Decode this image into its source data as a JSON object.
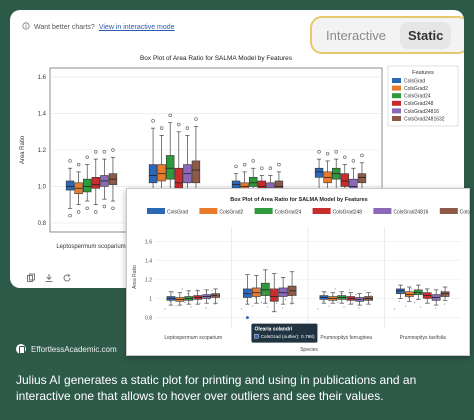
{
  "colors": {
    "ColsGrad": "#2d67b8",
    "ColsGrad2": "#ea7b2c",
    "ColsGrad24": "#2e9a3b",
    "ColsGrad248": "#c82c2d",
    "ColsGrad24816": "#8b68b8",
    "ColsGrad2481632": "#8d5a4a"
  },
  "hint": {
    "text": "Want better charts?",
    "link": "View in interactive mode"
  },
  "toggle": {
    "interactive": "Interactive",
    "static": "Static"
  },
  "static_plot": {
    "title": "Box Plot of Area Ratio for SALMA Model by Features",
    "ylabel": "Area Ratio",
    "visible_xlabel": "Leptospermum scoparium",
    "legend_title": "Features",
    "yticks": [
      "1.6",
      "1.4",
      "1.2",
      "1.0",
      "0.8"
    ]
  },
  "interactive_plot": {
    "title": "Box Plot of Area Ratio for SALMA Model by Features",
    "ylabel": "Area Ratio",
    "xlabel": "Species",
    "species": [
      "Leptospermum scoparium",
      "Olearia solandri",
      "Prumnopitys ferruginea",
      "Prumnopitys taxifolia"
    ],
    "yticks": [
      "1.6",
      "1.4",
      "1.2",
      "1",
      "0.8"
    ],
    "tooltip": {
      "title": "Olearia solandri",
      "text": "ColsGrad (outlier): 0.798)"
    }
  },
  "brand": "EffortlessAcademic.com",
  "caption": "Julius AI generates a static plot for printing and using in publications and an interactive one that allows to hover over outliers and see their values.",
  "chart_data": [
    {
      "type": "box",
      "title": "Box Plot of Area Ratio for SALMA Model by Features",
      "ylabel": "Area Ratio",
      "ylim": [
        0.75,
        1.65
      ],
      "legend_title": "Features",
      "legend_placement": "top-right",
      "series": [
        "ColsGrad",
        "ColsGrad2",
        "ColsGrad24",
        "ColsGrad248",
        "ColsGrad24816",
        "ColsGrad2481632"
      ],
      "groups": [
        {
          "median": [
            1.0,
            0.99,
            1.0,
            1.01,
            1.03,
            1.04
          ],
          "q1": [
            0.98,
            0.96,
            0.97,
            0.99,
            1.0,
            1.01
          ],
          "q3": [
            1.03,
            1.02,
            1.04,
            1.05,
            1.06,
            1.07
          ],
          "whisker_low": [
            0.88,
            0.9,
            0.92,
            0.9,
            0.93,
            0.92
          ],
          "whisker_high": [
            1.1,
            1.08,
            1.12,
            1.15,
            1.15,
            1.16
          ]
        },
        {
          "median": [
            1.06,
            1.07,
            1.1,
            1.02,
            1.07,
            1.09
          ],
          "q1": [
            1.02,
            1.03,
            1.04,
            0.97,
            1.02,
            1.02
          ],
          "q3": [
            1.12,
            1.12,
            1.17,
            1.1,
            1.12,
            1.14
          ],
          "whisker_low": [
            0.95,
            0.95,
            0.95,
            0.85,
            0.94,
            0.94
          ],
          "whisker_high": [
            1.32,
            1.28,
            1.35,
            1.3,
            1.28,
            1.33
          ]
        },
        {
          "median": [
            1.01,
            1.0,
            1.02,
            1.0,
            0.99,
            1.0
          ],
          "q1": [
            0.99,
            0.98,
            1.0,
            0.98,
            0.97,
            0.97
          ],
          "q3": [
            1.03,
            1.02,
            1.05,
            1.03,
            1.02,
            1.03
          ],
          "whisker_low": [
            0.95,
            0.95,
            0.96,
            0.94,
            0.93,
            0.93
          ],
          "whisker_high": [
            1.07,
            1.08,
            1.1,
            1.06,
            1.06,
            1.08
          ]
        },
        {
          "median": [
            1.08,
            1.05,
            1.07,
            1.03,
            1.0,
            1.05
          ],
          "q1": [
            1.05,
            1.02,
            1.04,
            1.0,
            0.97,
            1.02
          ],
          "q3": [
            1.1,
            1.08,
            1.1,
            1.07,
            1.04,
            1.07
          ],
          "whisker_low": [
            0.98,
            0.97,
            0.98,
            0.94,
            0.9,
            0.97
          ],
          "whisker_high": [
            1.15,
            1.14,
            1.15,
            1.12,
            1.1,
            1.13
          ]
        }
      ]
    },
    {
      "type": "box",
      "title": "Box Plot of Area Ratio for SALMA Model by Features",
      "xlabel": "Species",
      "ylabel": "Area Ratio",
      "ylim": [
        0.7,
        1.75
      ],
      "legend_placement": "top",
      "categories": [
        "Leptospermum scoparium",
        "Olearia solandri",
        "Prumnopitys ferruginea",
        "Prumnopitys taxifolia"
      ],
      "series": [
        "ColsGrad",
        "ColsGrad2",
        "ColsGrad24",
        "ColsGrad248",
        "ColsGrad24816",
        "ColsGrad2481632"
      ],
      "groups": [
        {
          "median": [
            1.0,
            0.99,
            1.0,
            1.01,
            1.02,
            1.03
          ],
          "q1": [
            0.98,
            0.97,
            0.98,
            0.99,
            1.0,
            1.01
          ],
          "q3": [
            1.02,
            1.01,
            1.02,
            1.03,
            1.04,
            1.05
          ],
          "whisker_low": [
            0.93,
            0.93,
            0.94,
            0.94,
            0.95,
            0.95
          ],
          "whisker_high": [
            1.07,
            1.06,
            1.08,
            1.08,
            1.09,
            1.1
          ]
        },
        {
          "median": [
            1.05,
            1.06,
            1.09,
            1.02,
            1.06,
            1.08
          ],
          "q1": [
            1.01,
            1.02,
            1.03,
            0.97,
            1.02,
            1.03
          ],
          "q3": [
            1.1,
            1.11,
            1.16,
            1.1,
            1.11,
            1.13
          ],
          "whisker_low": [
            0.94,
            0.95,
            0.95,
            0.86,
            0.94,
            0.95
          ],
          "whisker_high": [
            1.25,
            1.24,
            1.3,
            1.26,
            1.22,
            1.28
          ]
        },
        {
          "median": [
            1.01,
            1.0,
            1.01,
            1.0,
            0.99,
            1.0
          ],
          "q1": [
            0.99,
            0.98,
            0.99,
            0.98,
            0.97,
            0.98
          ],
          "q3": [
            1.03,
            1.02,
            1.03,
            1.02,
            1.01,
            1.02
          ],
          "whisker_low": [
            0.95,
            0.95,
            0.95,
            0.94,
            0.93,
            0.94
          ],
          "whisker_high": [
            1.07,
            1.06,
            1.07,
            1.06,
            1.05,
            1.06
          ]
        },
        {
          "median": [
            1.08,
            1.04,
            1.06,
            1.03,
            1.01,
            1.05
          ],
          "q1": [
            1.05,
            1.02,
            1.04,
            1.0,
            0.98,
            1.02
          ],
          "q3": [
            1.1,
            1.07,
            1.09,
            1.06,
            1.04,
            1.07
          ],
          "whisker_low": [
            1.0,
            0.97,
            0.99,
            0.95,
            0.93,
            0.98
          ],
          "whisker_high": [
            1.14,
            1.12,
            1.14,
            1.1,
            1.09,
            1.12
          ]
        }
      ],
      "highlighted_outlier": {
        "species": "Olearia solandri",
        "series": "ColsGrad",
        "value": 0.798
      }
    }
  ]
}
